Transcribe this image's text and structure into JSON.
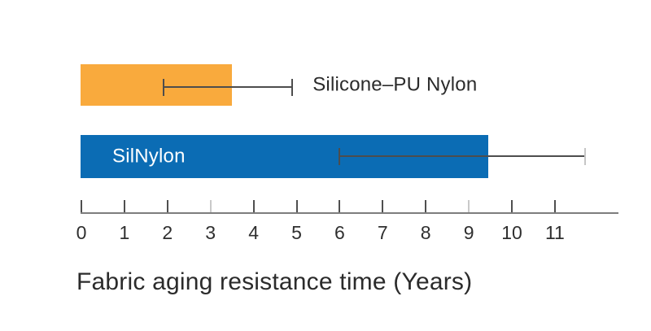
{
  "chart_data": {
    "type": "bar",
    "orientation": "horizontal",
    "title": "Fabric aging resistance time (Years)",
    "xlabel": "Fabric aging resistance time (Years)",
    "ylabel": "",
    "xlim": [
      0,
      12.5
    ],
    "grid": false,
    "axis": {
      "ticks": [
        0,
        1,
        2,
        3,
        4,
        5,
        6,
        7,
        8,
        9,
        10,
        11
      ],
      "light_ticks": [
        3,
        9
      ]
    },
    "categories": [
      "Silicone–PU Nylon",
      "SilNylon"
    ],
    "series": [
      {
        "name": "Silicone–PU Nylon",
        "value": 3.5,
        "error_low": 1.9,
        "error_high": 4.9,
        "bar_color": "#F9AA3D",
        "label_placement": "right-of-error",
        "label_color": "#2b2b2b",
        "error_color": "#4d4d4d",
        "error_cap_left_color": "#4d4d4d",
        "error_cap_right_color": "#4d4d4d"
      },
      {
        "name": "SilNylon",
        "value": 9.45,
        "error_low": 6.0,
        "error_high": 11.7,
        "bar_color": "#0B6CB4",
        "label_placement": "inside-left",
        "label_color": "#ffffff",
        "error_color": "#4d4d4d",
        "error_cap_left_color": "#4d4d4d",
        "error_cap_right_color": "#c6c6c6"
      }
    ],
    "colors": {
      "axis_line": "#7d7d7d",
      "tick": "#4f4f4f",
      "tick_light": "#c9c9c9",
      "tick_label": "#2f2f2f",
      "title": "#2b2b2b",
      "background": "#ffffff"
    }
  }
}
